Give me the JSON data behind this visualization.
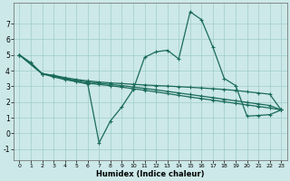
{
  "xlabel": "Humidex (Indice chaleur)",
  "xlim": [
    -0.5,
    23.5
  ],
  "ylim": [
    -1.7,
    8.3
  ],
  "yticks": [
    -1,
    0,
    1,
    2,
    3,
    4,
    5,
    6,
    7
  ],
  "xticks": [
    0,
    1,
    2,
    3,
    4,
    5,
    6,
    7,
    8,
    9,
    10,
    11,
    12,
    13,
    14,
    15,
    16,
    17,
    18,
    19,
    20,
    21,
    22,
    23
  ],
  "line_color": "#1a6b5a",
  "bg_color": "#cce8e8",
  "grid_color": "#a0cccc",
  "line1_x": [
    0,
    1,
    2,
    3,
    4,
    5,
    6,
    7,
    8,
    9,
    10,
    11,
    12,
    13,
    14,
    15,
    16,
    17,
    18,
    19,
    20,
    21,
    22,
    23
  ],
  "line1_y": [
    5.0,
    4.5,
    3.8,
    3.7,
    3.5,
    3.3,
    3.15,
    -0.6,
    0.8,
    1.7,
    2.8,
    4.85,
    5.2,
    5.3,
    4.75,
    7.75,
    7.25,
    5.5,
    3.5,
    3.05,
    1.1,
    1.15,
    1.2,
    1.5
  ],
  "line2_x": [
    0,
    1,
    2,
    3,
    4,
    5,
    6,
    7,
    8,
    9,
    10,
    11,
    12,
    13,
    14,
    15,
    16,
    17,
    18,
    19,
    20,
    21,
    22,
    23
  ],
  "line2_y": [
    5.0,
    4.5,
    3.8,
    3.7,
    3.56,
    3.44,
    3.35,
    3.28,
    3.22,
    3.18,
    3.13,
    3.09,
    3.05,
    3.02,
    2.98,
    2.94,
    2.9,
    2.85,
    2.8,
    2.74,
    2.66,
    2.58,
    2.5,
    1.5
  ],
  "line3_x": [
    0,
    2,
    3,
    4,
    5,
    6,
    7,
    8,
    9,
    10,
    11,
    12,
    13,
    14,
    15,
    16,
    17,
    18,
    19,
    20,
    21,
    22,
    23
  ],
  "line3_y": [
    5.0,
    3.8,
    3.65,
    3.5,
    3.38,
    3.28,
    3.2,
    3.12,
    3.05,
    2.96,
    2.87,
    2.78,
    2.68,
    2.58,
    2.48,
    2.38,
    2.28,
    2.18,
    2.08,
    1.98,
    1.88,
    1.78,
    1.5
  ],
  "line4_x": [
    0,
    2,
    3,
    4,
    5,
    6,
    7,
    8,
    9,
    10,
    11,
    12,
    13,
    14,
    15,
    16,
    17,
    18,
    19,
    20,
    21,
    22,
    23
  ],
  "line4_y": [
    5.0,
    3.8,
    3.6,
    3.43,
    3.3,
    3.2,
    3.12,
    3.04,
    2.95,
    2.85,
    2.75,
    2.65,
    2.54,
    2.43,
    2.32,
    2.22,
    2.12,
    2.02,
    1.92,
    1.82,
    1.72,
    1.62,
    1.5
  ]
}
